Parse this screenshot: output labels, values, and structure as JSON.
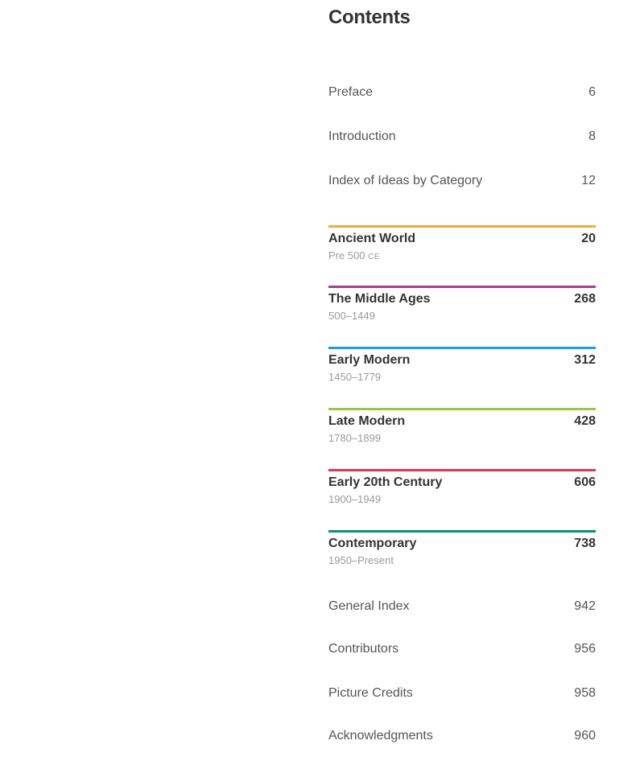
{
  "title": "Contents",
  "front_matter": [
    {
      "label": "Preface",
      "page": "6"
    },
    {
      "label": "Introduction",
      "page": "8"
    },
    {
      "label": "Index of Ideas by Category",
      "page": "12"
    }
  ],
  "chapters": [
    {
      "name": "Ancient World",
      "page": "20",
      "range": "Pre 500",
      "era": "CE",
      "color": "#f2a93b"
    },
    {
      "name": "The Middle Ages",
      "page": "268",
      "range": "500–1449",
      "era": "",
      "color": "#a5408e"
    },
    {
      "name": "Early Modern",
      "page": "312",
      "range": "1450–1779",
      "era": "",
      "color": "#1aa1d9"
    },
    {
      "name": "Late Modern",
      "page": "428",
      "range": "1780–1899",
      "era": "",
      "color": "#9cc548"
    },
    {
      "name": "Early 20th Century",
      "page": "606",
      "range": "1900–1949",
      "era": "",
      "color": "#e0354f"
    },
    {
      "name": "Contemporary",
      "page": "738",
      "range": "1950–Present",
      "era": "",
      "color": "#0e8f7c"
    }
  ],
  "back_matter": [
    {
      "label": "General Index",
      "page": "942"
    },
    {
      "label": "Contributors",
      "page": "956"
    },
    {
      "label": "Picture Credits",
      "page": "958"
    },
    {
      "label": "Acknowledgments",
      "page": "960"
    }
  ]
}
